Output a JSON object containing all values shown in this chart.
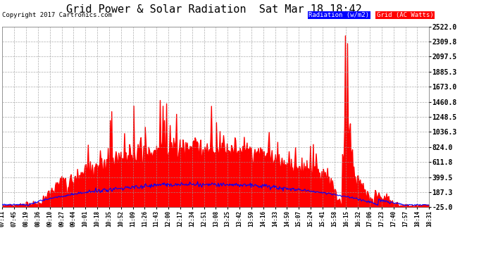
{
  "title": "Grid Power & Solar Radiation  Sat Mar 18 18:42",
  "copyright": "Copyright 2017 Cartronics.com",
  "legend_radiation": "Radiation (w/m2)",
  "legend_grid": "Grid (AC Watts)",
  "ymin": -25.0,
  "ymax": 2522.0,
  "yticks": [
    -25.0,
    187.3,
    399.5,
    611.8,
    824.0,
    1036.3,
    1248.5,
    1460.8,
    1673.0,
    1885.3,
    2097.5,
    2309.8,
    2522.0
  ],
  "ytick_labels": [
    "-25.0",
    "187.3",
    "399.5",
    "611.8",
    "824.0",
    "1036.3",
    "1248.5",
    "1460.8",
    "1673.0",
    "1885.3",
    "2097.5",
    "2309.8",
    "2522.0"
  ],
  "bg_color": "#ffffff",
  "grid_color": "#aaaaaa",
  "red_color": "#ff0000",
  "blue_color": "#0000ff",
  "xtick_labels": [
    "07:11",
    "07:45",
    "08:19",
    "08:36",
    "09:10",
    "09:27",
    "09:44",
    "10:01",
    "10:18",
    "10:35",
    "10:52",
    "11:09",
    "11:26",
    "11:43",
    "12:00",
    "12:17",
    "12:34",
    "12:51",
    "13:08",
    "13:25",
    "13:42",
    "13:59",
    "14:16",
    "14:33",
    "14:50",
    "15:07",
    "15:24",
    "15:41",
    "15:58",
    "16:15",
    "16:32",
    "17:06",
    "17:23",
    "17:40",
    "17:57",
    "18:14",
    "18:31"
  ]
}
